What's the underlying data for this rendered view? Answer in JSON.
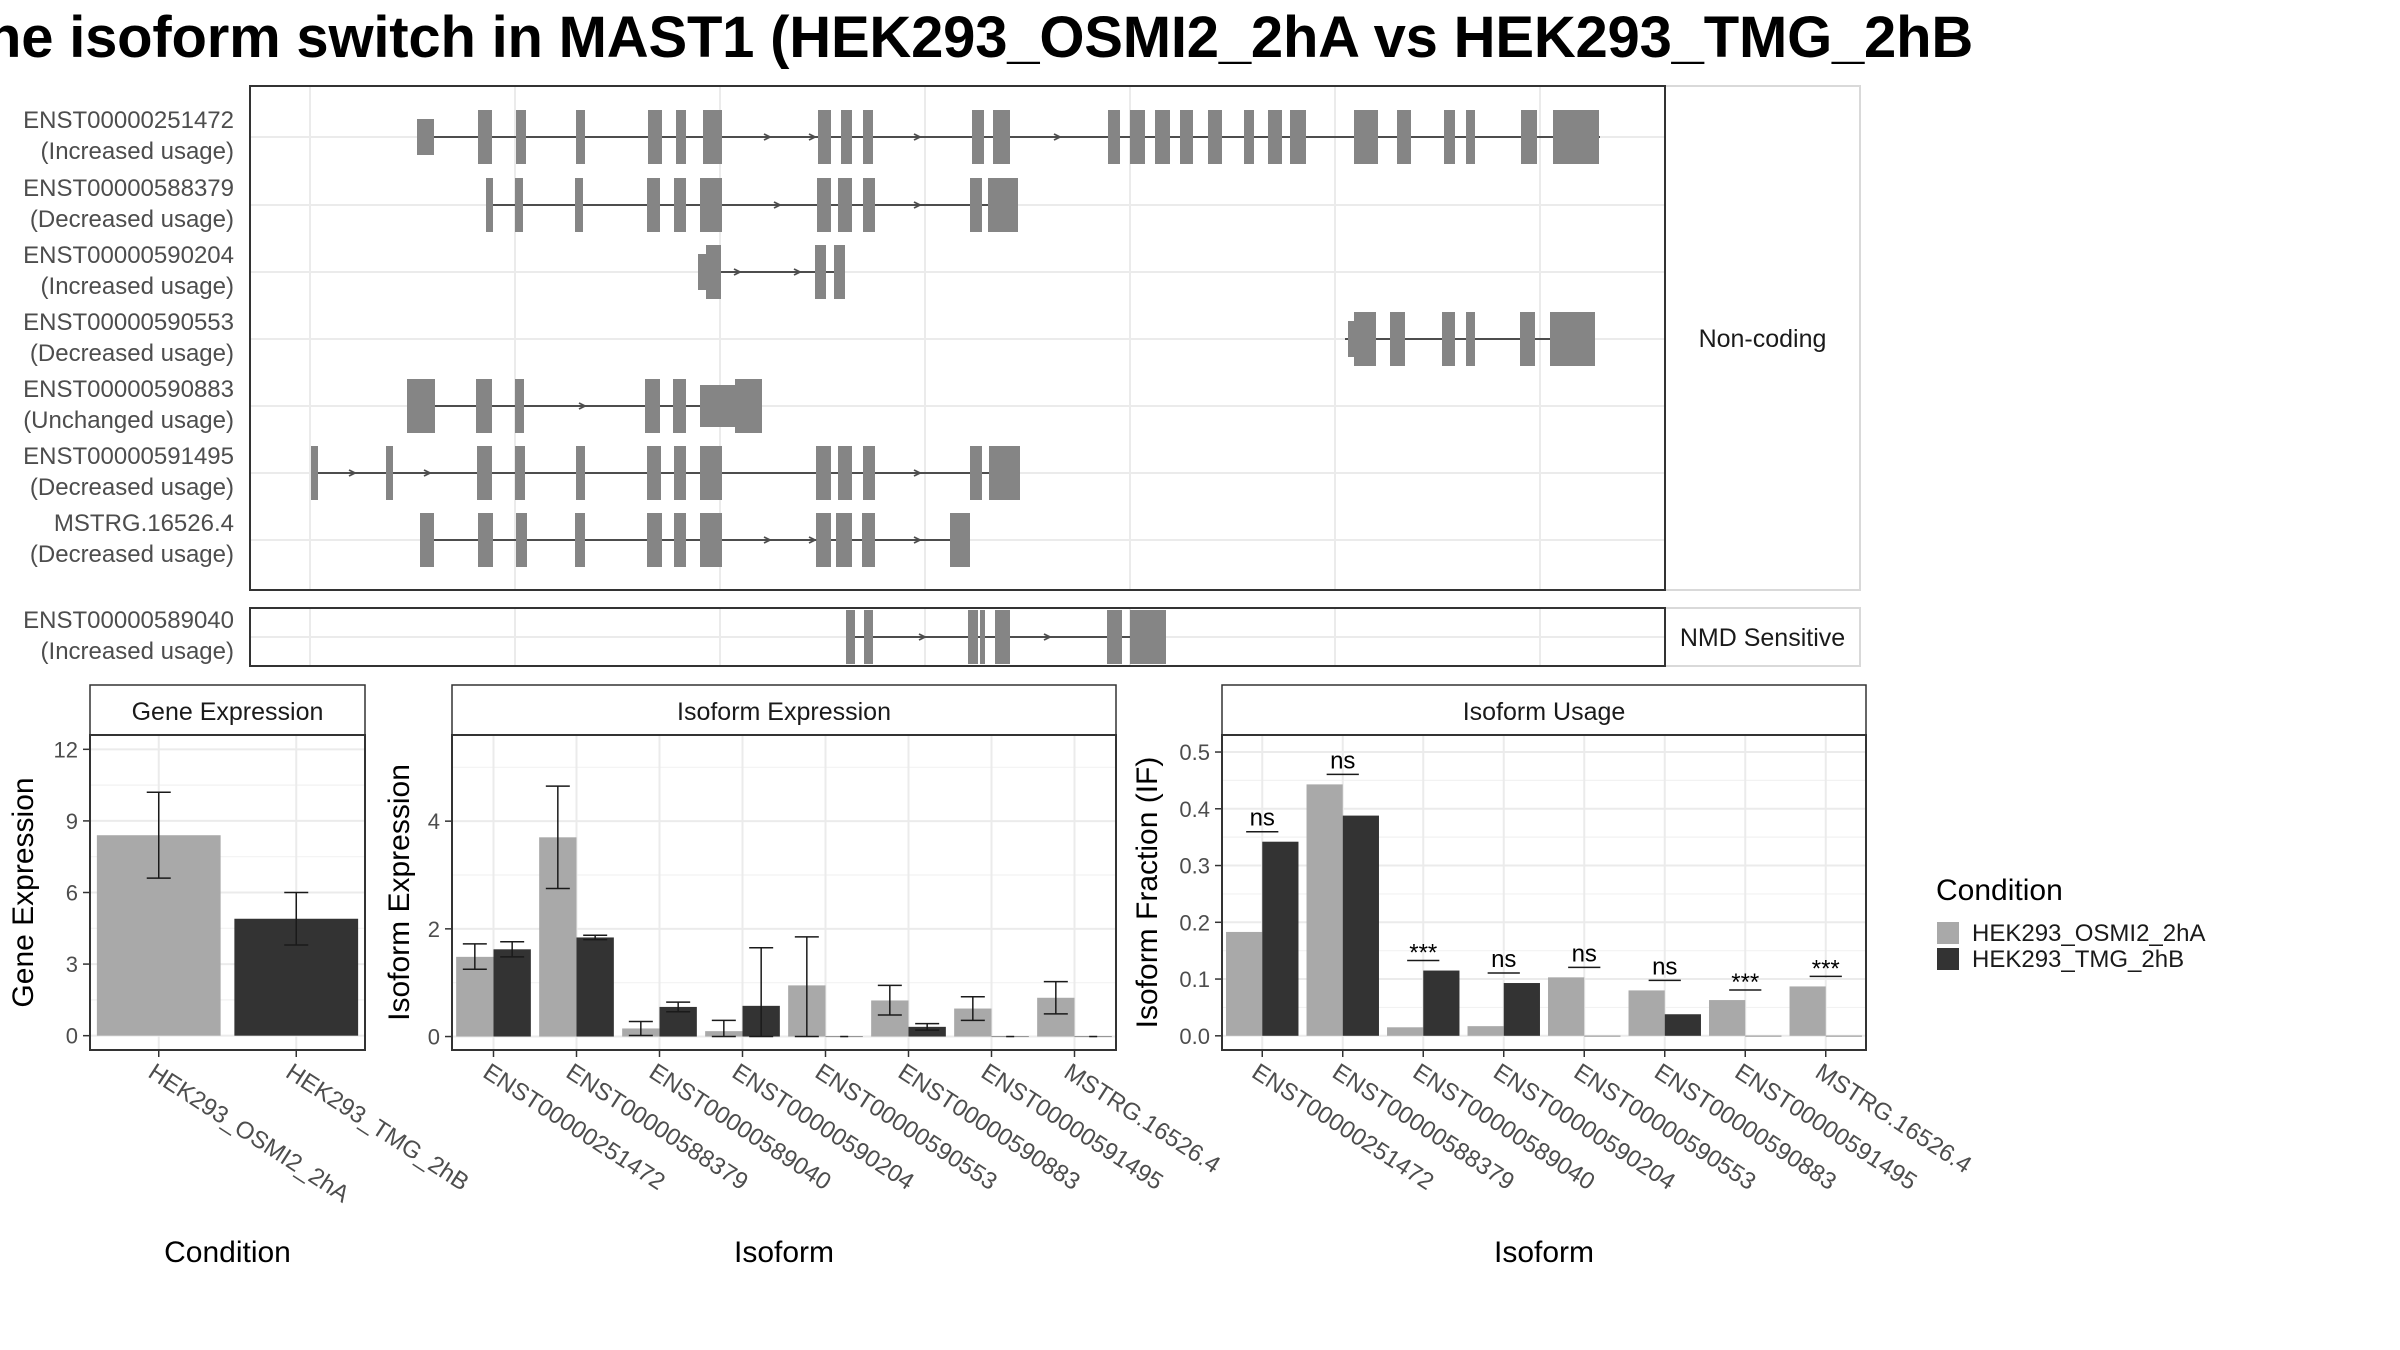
{
  "title": "he isoform switch in MAST1 (HEK293_OSMI2_2hA vs HEK293_TMG_2hB",
  "colors": {
    "condition_a": "#a9a9a9",
    "condition_b": "#333333",
    "exon": "#858585",
    "panel_border": "#333333",
    "strip_fill": "#ffffff",
    "grid": "#ebebeb"
  },
  "structure": {
    "groups": [
      {
        "label": "Non-coding",
        "tracks": [
          {
            "id": "ENST00000251472",
            "status": "(Increased usage)"
          },
          {
            "id": "ENST00000588379",
            "status": "(Decreased usage)"
          },
          {
            "id": "ENST00000590204",
            "status": "(Increased usage)"
          },
          {
            "id": "ENST00000590553",
            "status": "(Decreased usage)"
          },
          {
            "id": "ENST00000590883",
            "status": "(Unchanged usage)"
          },
          {
            "id": "ENST00000591495",
            "status": "(Decreased usage)"
          },
          {
            "id": "MSTRG.16526.4",
            "status": "(Decreased usage)"
          }
        ]
      },
      {
        "label": "NMD Sensitive",
        "tracks": [
          {
            "id": "ENST00000589040",
            "status": "(Increased usage)"
          }
        ]
      }
    ]
  },
  "legend": {
    "title": "Condition",
    "items": [
      "HEK293_OSMI2_2hA",
      "HEK293_TMG_2hB"
    ]
  },
  "chart_data": [
    {
      "type": "bar",
      "title": "Gene Expression",
      "xlabel": "Condition",
      "ylabel": "Gene Expression",
      "categories": [
        "HEK293_OSMI2_2hA",
        "HEK293_TMG_2hB"
      ],
      "values": [
        8.4,
        4.9
      ],
      "error_low": [
        6.6,
        3.8
      ],
      "error_high": [
        10.2,
        6.0
      ],
      "ylim": [
        -0.6,
        12.6
      ],
      "yticks": [
        0,
        3,
        6,
        9,
        12
      ],
      "ytick_labels": [
        "0",
        "3",
        "6",
        "9",
        "12"
      ],
      "grid": true
    },
    {
      "type": "bar",
      "title": "Isoform Expression",
      "xlabel": "Isoform",
      "ylabel": "Isoform Expression",
      "categories": [
        "ENST00000251472",
        "ENST00000588379",
        "ENST00000589040",
        "ENST00000590204",
        "ENST00000590553",
        "ENST00000590883",
        "ENST00000591495",
        "MSTRG.16526.4"
      ],
      "series": [
        {
          "name": "HEK293_OSMI2_2hA",
          "values": [
            1.48,
            3.7,
            0.15,
            0.1,
            0.95,
            0.67,
            0.52,
            0.72
          ],
          "error_low": [
            1.25,
            2.75,
            0.02,
            0.0,
            0.0,
            0.4,
            0.3,
            0.42
          ],
          "error_high": [
            1.72,
            4.65,
            0.28,
            0.3,
            1.85,
            0.95,
            0.74,
            1.02
          ]
        },
        {
          "name": "HEK293_TMG_2hB",
          "values": [
            1.62,
            1.84,
            0.55,
            0.57,
            0.0,
            0.18,
            0.0,
            0.0
          ],
          "error_low": [
            1.48,
            1.8,
            0.46,
            0.0,
            0.0,
            0.12,
            0.0,
            0.0
          ],
          "error_high": [
            1.76,
            1.88,
            0.64,
            1.65,
            0.0,
            0.24,
            0.0,
            0.0
          ]
        }
      ],
      "ylim": [
        -0.25,
        5.6
      ],
      "yticks": [
        0,
        2,
        4
      ],
      "ytick_labels": [
        "0",
        "2",
        "4"
      ],
      "grid": true
    },
    {
      "type": "bar",
      "title": "Isoform Usage",
      "xlabel": "Isoform",
      "ylabel": "Isoform Fraction (IF)",
      "categories": [
        "ENST00000251472",
        "ENST00000588379",
        "ENST00000589040",
        "ENST00000590204",
        "ENST00000590553",
        "ENST00000590883",
        "ENST00000591495",
        "MSTRG.16526.4"
      ],
      "series": [
        {
          "name": "HEK293_OSMI2_2hA",
          "values": [
            0.183,
            0.443,
            0.015,
            0.017,
            0.103,
            0.08,
            0.063,
            0.087
          ]
        },
        {
          "name": "HEK293_TMG_2hB",
          "values": [
            0.342,
            0.388,
            0.115,
            0.093,
            0.0,
            0.038,
            0.0,
            0.0
          ]
        }
      ],
      "significance": [
        "ns",
        "ns",
        "***",
        "ns",
        "ns",
        "ns",
        "***",
        "***"
      ],
      "ylim": [
        -0.025,
        0.53
      ],
      "yticks": [
        0,
        0.1,
        0.2,
        0.3,
        0.4,
        0.5
      ],
      "ytick_labels": [
        "0.0",
        "0.1",
        "0.2",
        "0.3",
        "0.4",
        "0.5"
      ],
      "grid": true
    }
  ]
}
